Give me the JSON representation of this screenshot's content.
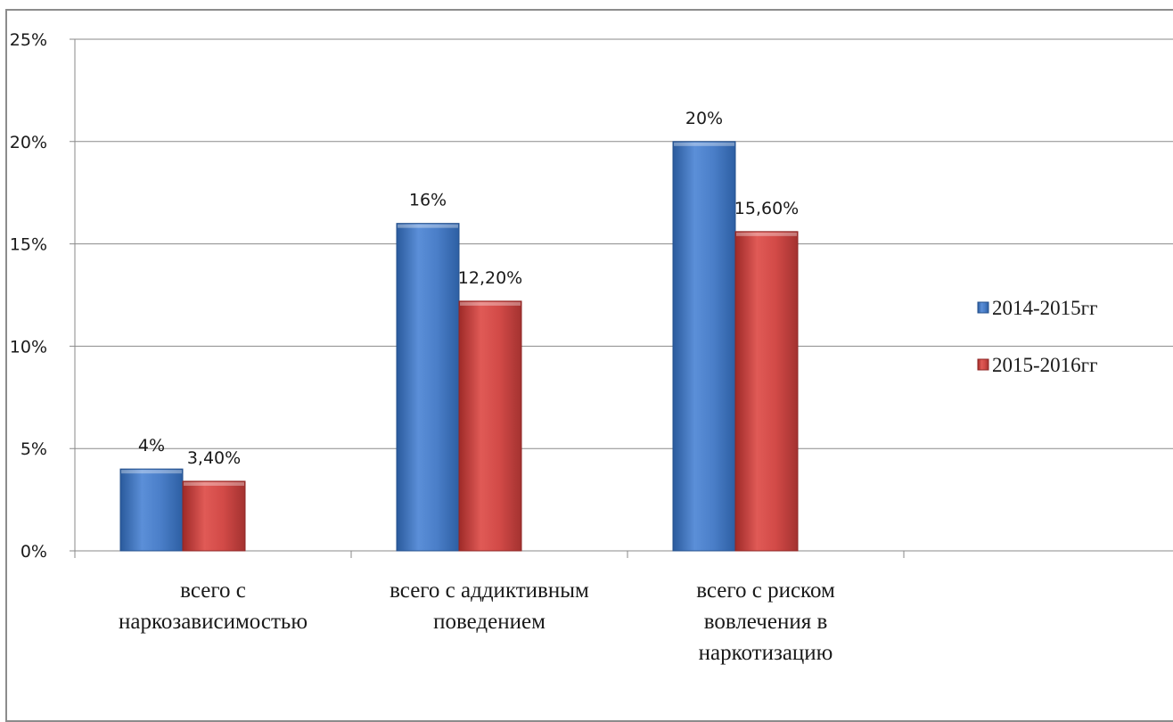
{
  "chart_data": {
    "type": "bar",
    "categories": [
      [
        "всего с",
        "наркозависимостью"
      ],
      [
        "всего с аддиктивным",
        "поведением"
      ],
      [
        "всего с риском",
        "вовлечения в",
        "наркотизацию"
      ]
    ],
    "series": [
      {
        "name": "2014-2015гг",
        "values": [
          4,
          16,
          20
        ],
        "labels": [
          "4%",
          "16%",
          "20%"
        ],
        "color": "#4a7ec8"
      },
      {
        "name": "2015-2016гг",
        "values": [
          3.4,
          12.2,
          15.6
        ],
        "labels": [
          "3,40%",
          "12,20%",
          "15,60%"
        ],
        "color": "#d24a47"
      }
    ],
    "y_ticks": [
      "0%",
      "5%",
      "10%",
      "15%",
      "20%",
      "25%"
    ],
    "ylim": [
      0,
      25
    ],
    "grid": true,
    "legend": "right"
  }
}
